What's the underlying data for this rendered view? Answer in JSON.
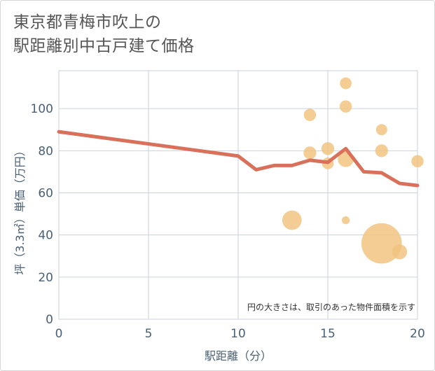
{
  "title_lines": [
    "東京都青梅市吹上の",
    "駅距離別中古戸建て価格"
  ],
  "colors": {
    "line": "#d9705a",
    "bubble": "#f2c27c",
    "grid": "#c8d2dc",
    "axis_text": "#4a6076",
    "title_text": "#555555"
  },
  "chart_data": {
    "type": "scatter",
    "title": "東京都青梅市吹上の駅距離別中古戸建て価格",
    "xlabel": "駅距離（分）",
    "ylabel": "坪（3.3㎡）単価（万円）",
    "xlim": [
      0,
      20
    ],
    "ylim": [
      0,
      118
    ],
    "xticks": [
      0,
      5,
      10,
      15,
      20
    ],
    "yticks": [
      0,
      20,
      40,
      60,
      80,
      100
    ],
    "grid": true,
    "annotation": "円の大きさは、取引のあった物件面積を示す",
    "line": {
      "x": [
        0,
        10,
        11,
        12,
        13,
        14,
        15,
        16,
        17,
        18,
        19,
        20
      ],
      "y": [
        89,
        77.5,
        71,
        73,
        73,
        75.5,
        74.5,
        81,
        70,
        69.5,
        64.5,
        63.5
      ]
    },
    "bubbles": [
      {
        "x": 13,
        "y": 47,
        "size": 3
      },
      {
        "x": 14,
        "y": 97,
        "size": 1.2
      },
      {
        "x": 14,
        "y": 79,
        "size": 1.3
      },
      {
        "x": 15,
        "y": 81,
        "size": 1.3
      },
      {
        "x": 15,
        "y": 74,
        "size": 1.1
      },
      {
        "x": 16,
        "y": 112,
        "size": 1.1
      },
      {
        "x": 16,
        "y": 101,
        "size": 1.2
      },
      {
        "x": 16,
        "y": 76,
        "size": 2
      },
      {
        "x": 16,
        "y": 47,
        "size": 0.5
      },
      {
        "x": 18,
        "y": 36,
        "size": 13
      },
      {
        "x": 18,
        "y": 90,
        "size": 1
      },
      {
        "x": 18,
        "y": 80,
        "size": 1.3
      },
      {
        "x": 19,
        "y": 32,
        "size": 1.8
      },
      {
        "x": 20,
        "y": 75,
        "size": 1.2
      }
    ]
  }
}
